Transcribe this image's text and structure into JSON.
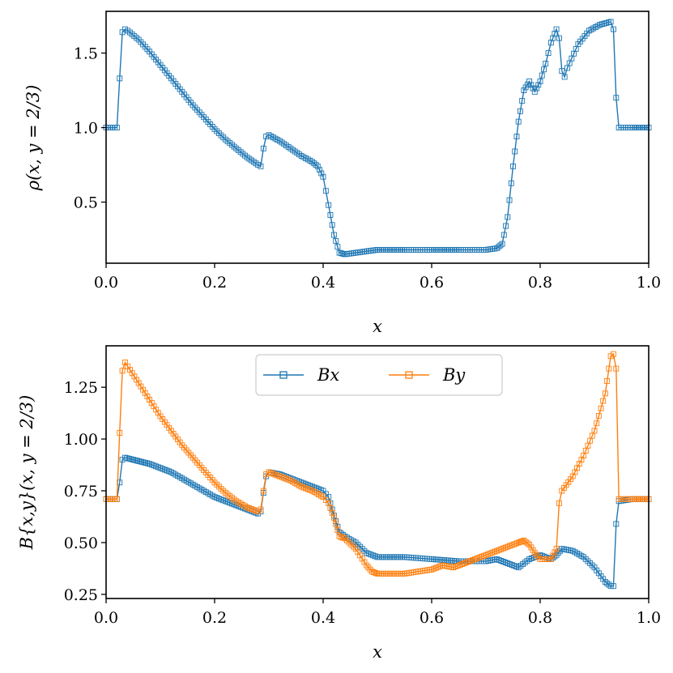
{
  "colors": {
    "Bx": "#1f77b4",
    "By": "#ff7f0e"
  },
  "chart_data": [
    {
      "type": "line",
      "marker": "square-open",
      "xlabel": "x",
      "ylabel": "ρ(x, y = 2/3)",
      "xlim": [
        0.0,
        1.0
      ],
      "ylim": [
        0.09,
        1.78
      ],
      "xticks": [
        "0.0",
        "0.2",
        "0.4",
        "0.6",
        "0.8",
        "1.0"
      ],
      "yticks": [
        "0.5",
        "1.0",
        "1.5"
      ],
      "grid": false,
      "series": [
        {
          "color": "#1f77b4",
          "points": [
            [
              0.0,
              1.0
            ],
            [
              0.02,
              1.0
            ],
            [
              0.025,
              1.33
            ],
            [
              0.03,
              1.64
            ],
            [
              0.035,
              1.66
            ],
            [
              0.04,
              1.65
            ],
            [
              0.06,
              1.59
            ],
            [
              0.08,
              1.51
            ],
            [
              0.1,
              1.42
            ],
            [
              0.12,
              1.33
            ],
            [
              0.14,
              1.24
            ],
            [
              0.16,
              1.15
            ],
            [
              0.18,
              1.07
            ],
            [
              0.2,
              0.99
            ],
            [
              0.22,
              0.92
            ],
            [
              0.24,
              0.86
            ],
            [
              0.26,
              0.8
            ],
            [
              0.28,
              0.75
            ],
            [
              0.285,
              0.74
            ],
            [
              0.29,
              0.86
            ],
            [
              0.295,
              0.94
            ],
            [
              0.3,
              0.95
            ],
            [
              0.32,
              0.91
            ],
            [
              0.34,
              0.86
            ],
            [
              0.36,
              0.81
            ],
            [
              0.38,
              0.77
            ],
            [
              0.39,
              0.74
            ],
            [
              0.4,
              0.67
            ],
            [
              0.41,
              0.48
            ],
            [
              0.42,
              0.28
            ],
            [
              0.43,
              0.16
            ],
            [
              0.44,
              0.15
            ],
            [
              0.46,
              0.16
            ],
            [
              0.5,
              0.18
            ],
            [
              0.55,
              0.18
            ],
            [
              0.6,
              0.18
            ],
            [
              0.65,
              0.18
            ],
            [
              0.7,
              0.18
            ],
            [
              0.72,
              0.19
            ],
            [
              0.73,
              0.22
            ],
            [
              0.74,
              0.4
            ],
            [
              0.75,
              0.74
            ],
            [
              0.76,
              1.04
            ],
            [
              0.77,
              1.25
            ],
            [
              0.78,
              1.31
            ],
            [
              0.79,
              1.24
            ],
            [
              0.8,
              1.31
            ],
            [
              0.81,
              1.43
            ],
            [
              0.82,
              1.57
            ],
            [
              0.83,
              1.66
            ],
            [
              0.835,
              1.6
            ],
            [
              0.84,
              1.38
            ],
            [
              0.845,
              1.34
            ],
            [
              0.85,
              1.4
            ],
            [
              0.87,
              1.56
            ],
            [
              0.89,
              1.65
            ],
            [
              0.91,
              1.69
            ],
            [
              0.93,
              1.71
            ],
            [
              0.935,
              1.66
            ],
            [
              0.94,
              1.2
            ],
            [
              0.945,
              1.0
            ],
            [
              0.97,
              1.0
            ],
            [
              1.0,
              1.0
            ]
          ]
        }
      ]
    },
    {
      "type": "line",
      "marker": "square-open",
      "xlabel": "x",
      "ylabel": "B{x,y}(x, y = 2/3)",
      "xlim": [
        0.0,
        1.0
      ],
      "ylim": [
        0.23,
        1.45
      ],
      "xticks": [
        "0.0",
        "0.2",
        "0.4",
        "0.6",
        "0.8",
        "1.0"
      ],
      "yticks": [
        "0.25",
        "0.50",
        "0.75",
        "1.00",
        "1.25"
      ],
      "grid": false,
      "legend": {
        "placement": "upper-center",
        "ncol": 2
      },
      "series": [
        {
          "name": "Bx",
          "color": "#1f77b4",
          "points": [
            [
              0.0,
              0.71
            ],
            [
              0.02,
              0.71
            ],
            [
              0.025,
              0.79
            ],
            [
              0.03,
              0.9
            ],
            [
              0.035,
              0.91
            ],
            [
              0.05,
              0.9
            ],
            [
              0.08,
              0.88
            ],
            [
              0.1,
              0.86
            ],
            [
              0.12,
              0.84
            ],
            [
              0.14,
              0.81
            ],
            [
              0.16,
              0.78
            ],
            [
              0.18,
              0.75
            ],
            [
              0.2,
              0.72
            ],
            [
              0.22,
              0.7
            ],
            [
              0.24,
              0.68
            ],
            [
              0.26,
              0.66
            ],
            [
              0.28,
              0.64
            ],
            [
              0.285,
              0.65
            ],
            [
              0.29,
              0.74
            ],
            [
              0.295,
              0.82
            ],
            [
              0.3,
              0.84
            ],
            [
              0.32,
              0.83
            ],
            [
              0.34,
              0.81
            ],
            [
              0.36,
              0.79
            ],
            [
              0.38,
              0.77
            ],
            [
              0.4,
              0.75
            ],
            [
              0.41,
              0.72
            ],
            [
              0.42,
              0.63
            ],
            [
              0.43,
              0.55
            ],
            [
              0.44,
              0.53
            ],
            [
              0.46,
              0.5
            ],
            [
              0.48,
              0.45
            ],
            [
              0.5,
              0.43
            ],
            [
              0.55,
              0.43
            ],
            [
              0.6,
              0.42
            ],
            [
              0.65,
              0.41
            ],
            [
              0.7,
              0.41
            ],
            [
              0.72,
              0.42
            ],
            [
              0.74,
              0.4
            ],
            [
              0.76,
              0.38
            ],
            [
              0.78,
              0.42
            ],
            [
              0.8,
              0.44
            ],
            [
              0.82,
              0.42
            ],
            [
              0.83,
              0.44
            ],
            [
              0.84,
              0.47
            ],
            [
              0.86,
              0.46
            ],
            [
              0.88,
              0.43
            ],
            [
              0.9,
              0.38
            ],
            [
              0.92,
              0.31
            ],
            [
              0.93,
              0.29
            ],
            [
              0.935,
              0.29
            ],
            [
              0.94,
              0.59
            ],
            [
              0.945,
              0.7
            ],
            [
              0.97,
              0.71
            ],
            [
              1.0,
              0.71
            ]
          ]
        },
        {
          "name": "By",
          "color": "#ff7f0e",
          "points": [
            [
              0.0,
              0.71
            ],
            [
              0.02,
              0.71
            ],
            [
              0.025,
              1.03
            ],
            [
              0.03,
              1.33
            ],
            [
              0.035,
              1.37
            ],
            [
              0.04,
              1.35
            ],
            [
              0.06,
              1.27
            ],
            [
              0.08,
              1.19
            ],
            [
              0.1,
              1.11
            ],
            [
              0.12,
              1.04
            ],
            [
              0.14,
              0.97
            ],
            [
              0.16,
              0.91
            ],
            [
              0.18,
              0.85
            ],
            [
              0.2,
              0.79
            ],
            [
              0.22,
              0.74
            ],
            [
              0.24,
              0.7
            ],
            [
              0.26,
              0.67
            ],
            [
              0.28,
              0.65
            ],
            [
              0.285,
              0.66
            ],
            [
              0.29,
              0.75
            ],
            [
              0.295,
              0.83
            ],
            [
              0.3,
              0.84
            ],
            [
              0.32,
              0.82
            ],
            [
              0.34,
              0.8
            ],
            [
              0.36,
              0.77
            ],
            [
              0.38,
              0.75
            ],
            [
              0.4,
              0.72
            ],
            [
              0.41,
              0.69
            ],
            [
              0.42,
              0.62
            ],
            [
              0.43,
              0.53
            ],
            [
              0.44,
              0.52
            ],
            [
              0.46,
              0.47
            ],
            [
              0.48,
              0.39
            ],
            [
              0.49,
              0.36
            ],
            [
              0.5,
              0.35
            ],
            [
              0.55,
              0.35
            ],
            [
              0.6,
              0.37
            ],
            [
              0.62,
              0.39
            ],
            [
              0.64,
              0.38
            ],
            [
              0.66,
              0.4
            ],
            [
              0.7,
              0.44
            ],
            [
              0.74,
              0.48
            ],
            [
              0.76,
              0.5
            ],
            [
              0.77,
              0.51
            ],
            [
              0.78,
              0.49
            ],
            [
              0.79,
              0.45
            ],
            [
              0.8,
              0.42
            ],
            [
              0.82,
              0.42
            ],
            [
              0.83,
              0.47
            ],
            [
              0.835,
              0.69
            ],
            [
              0.84,
              0.75
            ],
            [
              0.86,
              0.82
            ],
            [
              0.88,
              0.92
            ],
            [
              0.9,
              1.04
            ],
            [
              0.92,
              1.22
            ],
            [
              0.93,
              1.4
            ],
            [
              0.935,
              1.41
            ],
            [
              0.94,
              1.34
            ],
            [
              0.945,
              0.71
            ],
            [
              0.97,
              0.71
            ],
            [
              1.0,
              0.71
            ]
          ]
        }
      ]
    }
  ]
}
